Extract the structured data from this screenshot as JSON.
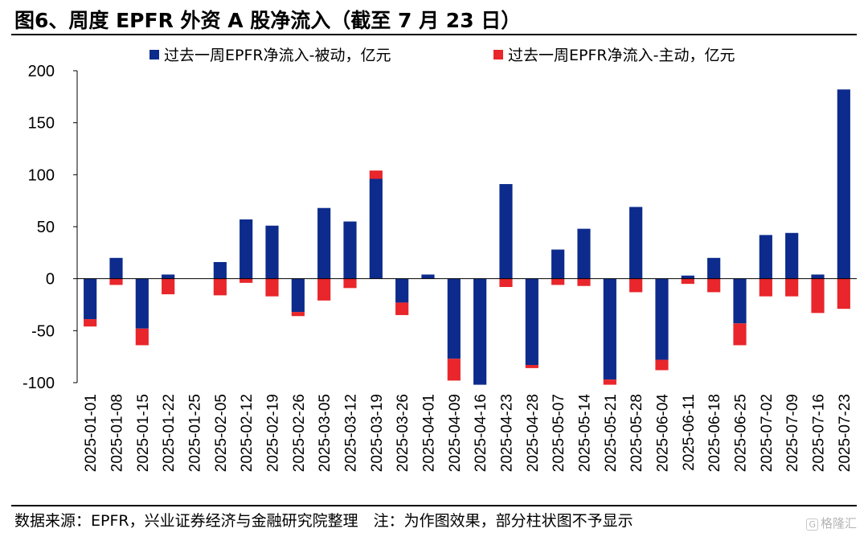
{
  "header": {
    "title": "图6、周度 EPFR 外资 A 股净流入（截至 7 月 23 日）"
  },
  "footer": {
    "source": "数据来源：EPFR，兴业证券经济与金融研究院整理　注：为作图效果，部分柱状图不予显示",
    "watermark": "格隆汇"
  },
  "chart_data": {
    "type": "bar",
    "stacked": true,
    "title": "图6、周度 EPFR 外资 A 股净流入（截至 7 月 23 日）",
    "categories": [
      "2025-01-01",
      "2025-01-08",
      "2025-01-15",
      "2025-01-22",
      "2025-01-25",
      "2025-02-05",
      "2025-02-12",
      "2025-02-19",
      "2025-02-26",
      "2025-03-05",
      "2025-03-12",
      "2025-03-19",
      "2025-03-26",
      "2025-04-01",
      "2025-04-09",
      "2025-04-16",
      "2025-04-23",
      "2025-04-28",
      "2025-05-07",
      "2025-05-14",
      "2025-05-21",
      "2025-05-28",
      "2025-06-04",
      "2025-06-11",
      "2025-06-18",
      "2025-06-25",
      "2025-07-02",
      "2025-07-09",
      "2025-07-16",
      "2025-07-23"
    ],
    "series": [
      {
        "name": "过去一周EPFR净流入-被动，亿元",
        "color": "#0d2b8c",
        "values": [
          -39,
          20,
          -48,
          4,
          0,
          16,
          57,
          51,
          -32,
          68,
          55,
          96,
          -23,
          4,
          -77,
          -102,
          91,
          -83,
          28,
          48,
          -97,
          69,
          -78,
          3,
          20,
          -43,
          42,
          44,
          4,
          182
        ]
      },
      {
        "name": "过去一周EPFR净流入-主动，亿元",
        "color": "#e8262b",
        "values": [
          -7,
          -6,
          -16,
          -15,
          0,
          -16,
          -4,
          -17,
          -4,
          -21,
          -9,
          8,
          -12,
          0,
          -21,
          0,
          -8,
          -3,
          -6,
          -7,
          -5,
          -13,
          -10,
          -5,
          -13,
          -21,
          -17,
          -17,
          -33,
          -29
        ]
      }
    ],
    "ylim": [
      -100,
      200
    ],
    "yticks": [
      -100,
      -50,
      0,
      50,
      100,
      150,
      200
    ],
    "xlabel": "",
    "ylabel": "",
    "legend_position": "top",
    "grid": false
  }
}
